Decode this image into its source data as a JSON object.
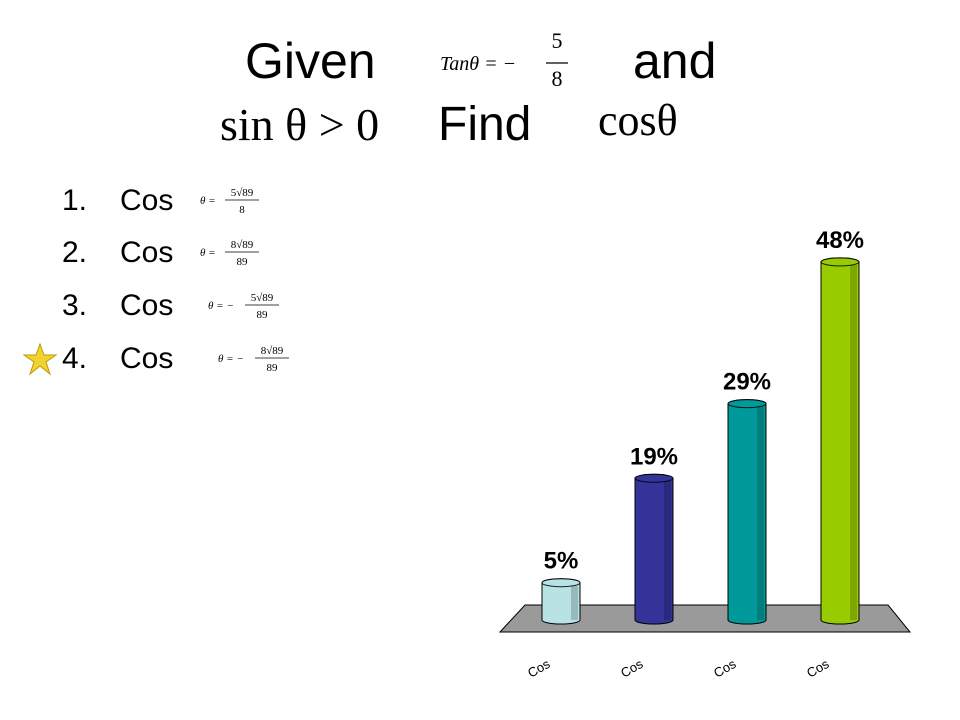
{
  "slide": {
    "given": "Given",
    "and": "and",
    "find": "Find",
    "tan_lhs": "Tanθ = −",
    "tan_num": "5",
    "tan_den": "8",
    "sin_condition": "sin θ > 0",
    "cos_target": "cosθ",
    "items": [
      {
        "number": "1.",
        "text": "Cos",
        "lhs": "θ =",
        "num": "5√89",
        "den": "8"
      },
      {
        "number": "2.",
        "text": "Cos",
        "lhs": "θ =",
        "num": "8√89",
        "den": "89"
      },
      {
        "number": "3.",
        "text": "Cos",
        "lhs": "θ = −",
        "num": "5√89",
        "den": "89"
      },
      {
        "number": "4.",
        "text": "Cos",
        "lhs": "θ = −",
        "num": "8√89",
        "den": "89"
      }
    ]
  },
  "chart_data": {
    "type": "bar3d",
    "categories": [
      "Cos",
      "Cos",
      "Cos",
      "Cos"
    ],
    "values": [
      5,
      19,
      29,
      48
    ],
    "value_labels": [
      "5%",
      "19%",
      "29%",
      "48%"
    ],
    "colors": [
      "#b8e2e4",
      "#333399",
      "#009999",
      "#99cc00"
    ]
  }
}
